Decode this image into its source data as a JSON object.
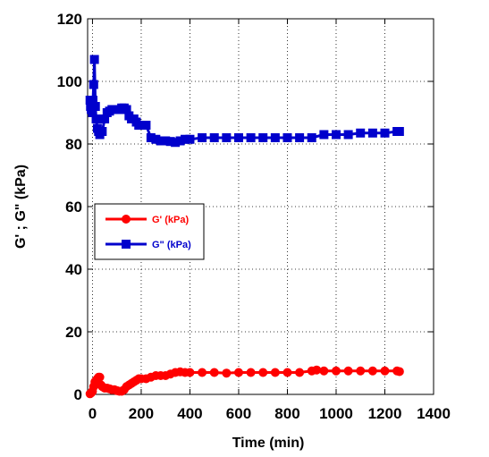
{
  "chart_data": {
    "type": "line",
    "xlabel": "Time (min)",
    "ylabel": "G' ; G\" (kPa)",
    "xlim": [
      -20,
      1400
    ],
    "ylim": [
      0,
      120
    ],
    "xticks": [
      0,
      200,
      400,
      600,
      800,
      1000,
      1200,
      1400
    ],
    "yticks": [
      0,
      20,
      40,
      60,
      80,
      100,
      120
    ],
    "xtick_labels": [
      "0",
      "200",
      "400",
      "600",
      "800",
      "1000",
      "1200",
      "1400"
    ],
    "ytick_labels": [
      "0",
      "20",
      "40",
      "60",
      "80",
      "100",
      "120"
    ],
    "grid": true,
    "legend_position": "center-left",
    "series": [
      {
        "name": "G' (kPa)",
        "color": "#ff0000",
        "marker": "circle",
        "points": [
          [
            -10,
            0.2
          ],
          [
            -5,
            0.5
          ],
          [
            0,
            1
          ],
          [
            5,
            2.5
          ],
          [
            10,
            4
          ],
          [
            15,
            4.5
          ],
          [
            20,
            5
          ],
          [
            25,
            5.5
          ],
          [
            30,
            5.5
          ],
          [
            35,
            3
          ],
          [
            40,
            2.5
          ],
          [
            50,
            2
          ],
          [
            60,
            2
          ],
          [
            70,
            1.8
          ],
          [
            80,
            1.5
          ],
          [
            90,
            1.5
          ],
          [
            100,
            1.2
          ],
          [
            110,
            1
          ],
          [
            120,
            1
          ],
          [
            130,
            1.5
          ],
          [
            140,
            2.5
          ],
          [
            150,
            3
          ],
          [
            160,
            3.5
          ],
          [
            170,
            4
          ],
          [
            180,
            4.5
          ],
          [
            190,
            5
          ],
          [
            200,
            5
          ],
          [
            220,
            5
          ],
          [
            240,
            5.5
          ],
          [
            260,
            6
          ],
          [
            280,
            6
          ],
          [
            300,
            6
          ],
          [
            320,
            6.5
          ],
          [
            340,
            7
          ],
          [
            360,
            7.2
          ],
          [
            380,
            7
          ],
          [
            400,
            7
          ],
          [
            450,
            7
          ],
          [
            500,
            7
          ],
          [
            550,
            6.8
          ],
          [
            600,
            7
          ],
          [
            650,
            7
          ],
          [
            700,
            7
          ],
          [
            750,
            7
          ],
          [
            800,
            7
          ],
          [
            850,
            7
          ],
          [
            900,
            7.5
          ],
          [
            920,
            7.8
          ],
          [
            950,
            7.5
          ],
          [
            1000,
            7.5
          ],
          [
            1050,
            7.5
          ],
          [
            1100,
            7.5
          ],
          [
            1150,
            7.5
          ],
          [
            1200,
            7.5
          ],
          [
            1250,
            7.5
          ],
          [
            1260,
            7.3
          ]
        ]
      },
      {
        "name": "G\" (kPa)",
        "color": "#0000cc",
        "marker": "square",
        "points": [
          [
            -10,
            94
          ],
          [
            -8,
            92
          ],
          [
            -5,
            91
          ],
          [
            0,
            90
          ],
          [
            2,
            94
          ],
          [
            5,
            99
          ],
          [
            8,
            107
          ],
          [
            12,
            92
          ],
          [
            15,
            88
          ],
          [
            20,
            85
          ],
          [
            25,
            84
          ],
          [
            30,
            83
          ],
          [
            40,
            84
          ],
          [
            50,
            88
          ],
          [
            60,
            90
          ],
          [
            70,
            90.5
          ],
          [
            80,
            91
          ],
          [
            90,
            91
          ],
          [
            100,
            91
          ],
          [
            110,
            91
          ],
          [
            120,
            91.5
          ],
          [
            130,
            91.5
          ],
          [
            140,
            91
          ],
          [
            150,
            89
          ],
          [
            160,
            88
          ],
          [
            170,
            88
          ],
          [
            180,
            87
          ],
          [
            190,
            86
          ],
          [
            200,
            86
          ],
          [
            220,
            86
          ],
          [
            240,
            82
          ],
          [
            260,
            81.5
          ],
          [
            280,
            81
          ],
          [
            300,
            81
          ],
          [
            320,
            80.8
          ],
          [
            340,
            80.5
          ],
          [
            360,
            81
          ],
          [
            380,
            81.5
          ],
          [
            400,
            81.5
          ],
          [
            450,
            82
          ],
          [
            500,
            82
          ],
          [
            550,
            82
          ],
          [
            600,
            82
          ],
          [
            650,
            82
          ],
          [
            700,
            82
          ],
          [
            750,
            82
          ],
          [
            800,
            82
          ],
          [
            850,
            82
          ],
          [
            900,
            82
          ],
          [
            950,
            83
          ],
          [
            1000,
            83
          ],
          [
            1050,
            83
          ],
          [
            1100,
            83.5
          ],
          [
            1150,
            83.5
          ],
          [
            1200,
            83.5
          ],
          [
            1250,
            84
          ],
          [
            1260,
            84
          ]
        ]
      }
    ]
  }
}
